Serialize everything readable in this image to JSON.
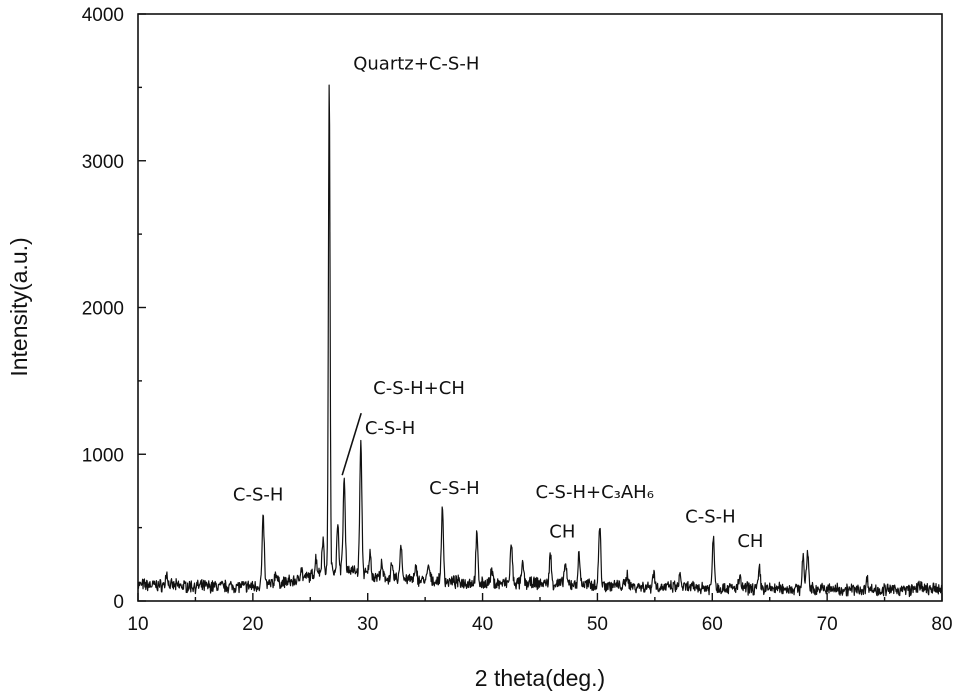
{
  "chart_data": {
    "type": "line",
    "title": "",
    "xlabel": "2 theta(deg.)",
    "ylabel": "Intensity(a.u.)",
    "xlim": [
      10,
      80
    ],
    "ylim": [
      0,
      4000
    ],
    "xticks": [
      "10",
      "20",
      "30",
      "40",
      "50",
      "60",
      "70",
      "80"
    ],
    "yticks": [
      "0",
      "1000",
      "2000",
      "3000",
      "4000"
    ],
    "grid": false,
    "legend": "none",
    "line_color": "#111111",
    "baseline": [
      [
        10,
        110
      ],
      [
        15,
        100
      ],
      [
        20,
        100
      ],
      [
        24,
        140
      ],
      [
        26,
        200
      ],
      [
        28,
        220
      ],
      [
        31,
        160
      ],
      [
        35,
        140
      ],
      [
        40,
        120
      ],
      [
        45,
        120
      ],
      [
        50,
        110
      ],
      [
        55,
        95
      ],
      [
        60,
        90
      ],
      [
        65,
        85
      ],
      [
        70,
        80
      ],
      [
        75,
        75
      ],
      [
        80,
        80
      ]
    ],
    "peaks": [
      {
        "x": 12.5,
        "y": 190
      },
      {
        "x": 20.9,
        "y": 570
      },
      {
        "x": 22.0,
        "y": 200
      },
      {
        "x": 24.2,
        "y": 230
      },
      {
        "x": 25.5,
        "y": 290
      },
      {
        "x": 26.1,
        "y": 420
      },
      {
        "x": 26.65,
        "y": 3560
      },
      {
        "x": 27.4,
        "y": 500
      },
      {
        "x": 27.95,
        "y": 830
      },
      {
        "x": 29.4,
        "y": 1070
      },
      {
        "x": 30.2,
        "y": 320
      },
      {
        "x": 31.2,
        "y": 240
      },
      {
        "x": 32.1,
        "y": 230
      },
      {
        "x": 32.9,
        "y": 390
      },
      {
        "x": 34.2,
        "y": 220
      },
      {
        "x": 35.3,
        "y": 240
      },
      {
        "x": 36.5,
        "y": 620
      },
      {
        "x": 39.5,
        "y": 440
      },
      {
        "x": 40.8,
        "y": 200
      },
      {
        "x": 42.5,
        "y": 390
      },
      {
        "x": 43.5,
        "y": 250
      },
      {
        "x": 45.9,
        "y": 310
      },
      {
        "x": 47.2,
        "y": 260
      },
      {
        "x": 48.4,
        "y": 310
      },
      {
        "x": 50.2,
        "y": 510
      },
      {
        "x": 52.6,
        "y": 190
      },
      {
        "x": 54.9,
        "y": 200
      },
      {
        "x": 57.2,
        "y": 170
      },
      {
        "x": 60.1,
        "y": 440
      },
      {
        "x": 62.4,
        "y": 160
      },
      {
        "x": 64.1,
        "y": 210
      },
      {
        "x": 67.9,
        "y": 300
      },
      {
        "x": 68.3,
        "y": 340
      },
      {
        "x": 73.5,
        "y": 150
      },
      {
        "x": 78.0,
        "y": 130
      }
    ],
    "annotations": [
      {
        "text": "Quartz+C-S-H",
        "x": 26.65,
        "y": 3560
      },
      {
        "text": "C-S-H+CH",
        "x": 27.95,
        "y": 830
      },
      {
        "text": "C-S-H",
        "x": 29.4,
        "y": 1070
      },
      {
        "text": "C-S-H",
        "x": 20.9,
        "y": 570
      },
      {
        "text": "C-S-H",
        "x": 36.5,
        "y": 620
      },
      {
        "text": "CH",
        "x": 45.9,
        "y": 310
      },
      {
        "text": "C-S-H+C₃AH₆",
        "x": 50.2,
        "y": 510
      },
      {
        "text": "C-S-H",
        "x": 60.1,
        "y": 440
      },
      {
        "text": "CH",
        "x": 64.1,
        "y": 210
      }
    ]
  }
}
